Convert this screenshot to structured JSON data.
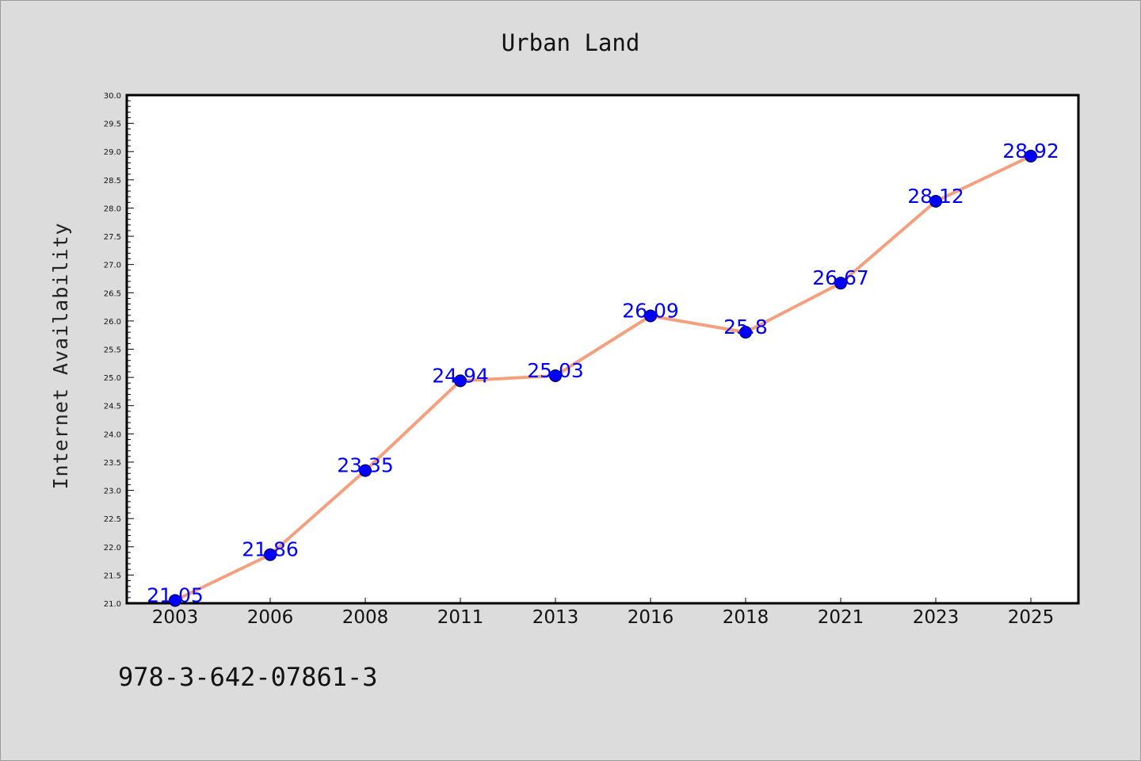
{
  "chart_data": {
    "type": "line",
    "title": "Urban Land",
    "xlabel": "",
    "ylabel": "Internet Availability",
    "categories": [
      "2003",
      "2006",
      "2008",
      "2011",
      "2013",
      "2016",
      "2018",
      "2021",
      "2023",
      "2025"
    ],
    "series": [
      {
        "values": [
          21.05,
          21.86,
          23.35,
          24.94,
          25.03,
          26.09,
          25.8,
          26.67,
          28.12,
          28.92
        ],
        "line_color": "#f4a07f",
        "marker_color": "#0000ff"
      }
    ],
    "data_labels": [
      "21.05",
      "21.86",
      "23.35",
      "24.94",
      "25.03",
      "26.09",
      "25.8",
      "26.67",
      "28.12",
      "28.92"
    ],
    "ylim": [
      21.0,
      30.0
    ],
    "y_ticks": [
      "21.0",
      "21.5",
      "22.0",
      "22.5",
      "23.0",
      "23.5",
      "24.0",
      "24.5",
      "25.0",
      "25.5",
      "26.0",
      "26.5",
      "27.0",
      "27.5",
      "28.0",
      "28.5",
      "29.0",
      "29.5",
      "30.0"
    ],
    "grid": false,
    "legend": "none",
    "background_color": "#dcdcdc",
    "plot_background_color": "#ffffff"
  },
  "footer": {
    "isbn": "978-3-642-07861-3"
  }
}
